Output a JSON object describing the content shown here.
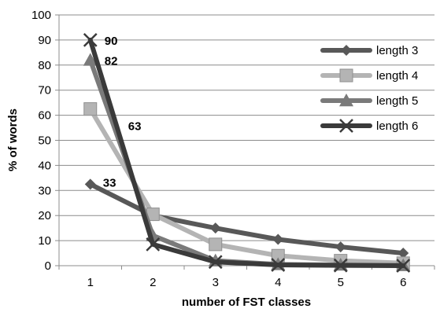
{
  "chart_data": {
    "type": "line",
    "xlabel": "number of FST classes",
    "ylabel": "% of words",
    "x": [
      1,
      2,
      3,
      4,
      5,
      6
    ],
    "ylim": [
      0,
      100
    ],
    "yticks": [
      0,
      10,
      20,
      30,
      40,
      50,
      60,
      70,
      80,
      90,
      100
    ],
    "grid": true,
    "legend_position": "right",
    "series": [
      {
        "name": "length 3",
        "values": [
          32.5,
          20,
          15,
          10.5,
          7.5,
          5
        ],
        "color": "#585858",
        "marker": "diamond"
      },
      {
        "name": "length 4",
        "values": [
          62.5,
          20.5,
          8.5,
          4,
          2,
          1
        ],
        "color": "#b4b4b4",
        "marker": "square"
      },
      {
        "name": "length 5",
        "values": [
          82,
          12,
          2,
          0.5,
          0.3,
          0.1
        ],
        "color": "#7a7a7a",
        "marker": "triangle"
      },
      {
        "name": "length 6",
        "values": [
          90,
          8.5,
          1.5,
          0.3,
          0.1,
          0
        ],
        "color": "#3a3a3a",
        "marker": "x"
      }
    ],
    "data_labels": [
      {
        "text": "90",
        "series": "length 6",
        "x": 1,
        "y": 90
      },
      {
        "text": "82",
        "series": "length 5",
        "x": 1,
        "y": 82
      },
      {
        "text": "63",
        "series": "length 4",
        "x": 1,
        "y": 62.5
      },
      {
        "text": "33",
        "series": "length 3",
        "x": 1,
        "y": 32.5
      }
    ]
  }
}
